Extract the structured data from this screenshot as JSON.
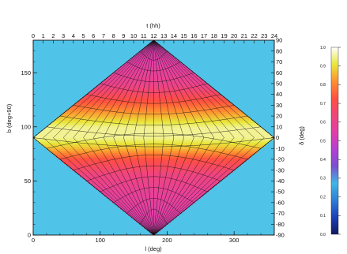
{
  "chart_data": {
    "type": "heatmap",
    "title": "",
    "projection": "sinusoidal-style all-sky map with equatorial (RA/Dec) grid overlay",
    "xlabel_bottom": "l (deg)",
    "xlabel_top": "t (hh)",
    "ylabel_left": "b (deg+90)",
    "ylabel_right": "δ (deg)",
    "bottom_ticks": [
      0,
      100,
      200,
      300
    ],
    "bottom_range": [
      0,
      360
    ],
    "left_ticks": [
      0,
      50,
      100,
      150
    ],
    "left_range": [
      0,
      180
    ],
    "top_ticks": [
      0,
      1,
      2,
      3,
      4,
      5,
      6,
      7,
      8,
      9,
      10,
      11,
      12,
      13,
      14,
      15,
      16,
      17,
      18,
      19,
      20,
      21,
      22,
      23,
      24
    ],
    "top_range": [
      0,
      24
    ],
    "right_ticks": [
      90,
      80,
      70,
      60,
      50,
      40,
      30,
      20,
      10,
      0,
      -10,
      -20,
      -30,
      -40,
      -50,
      -60,
      -70,
      -80,
      -90
    ],
    "right_range": [
      -90,
      90
    ],
    "colorbar": {
      "ticks": [
        1.0,
        0.9,
        0.8,
        0.7,
        0.6,
        0.5,
        0.4,
        0.3,
        0.2,
        0.1,
        0.0
      ],
      "tick_labels": [
        "1.0",
        "0.9",
        "0.8",
        "0.7",
        "0.6",
        "0.5",
        "0.4",
        "0.3",
        "0.2",
        "0.1",
        "0.0"
      ],
      "range": [
        0,
        1
      ]
    },
    "band_profile": {
      "b_plus_90": [
        0,
        20,
        40,
        55,
        70,
        80,
        90,
        100,
        110,
        125,
        140,
        160,
        180
      ],
      "value": [
        0.52,
        0.55,
        0.58,
        0.62,
        0.72,
        0.86,
        0.95,
        0.95,
        0.86,
        0.72,
        0.6,
        0.55,
        0.52
      ]
    },
    "background_value": 0.15
  },
  "colors": {
    "background_sky": "#4fc3e8",
    "grid_line": "#101010",
    "colormap": [
      "#101a60",
      "#1e3fb8",
      "#2d7fd6",
      "#3fb6e6",
      "#7a4fd0",
      "#b33fd6",
      "#e23fa8",
      "#f0457a",
      "#ff5040",
      "#ff9030",
      "#e8e83a",
      "#ffffff"
    ]
  }
}
